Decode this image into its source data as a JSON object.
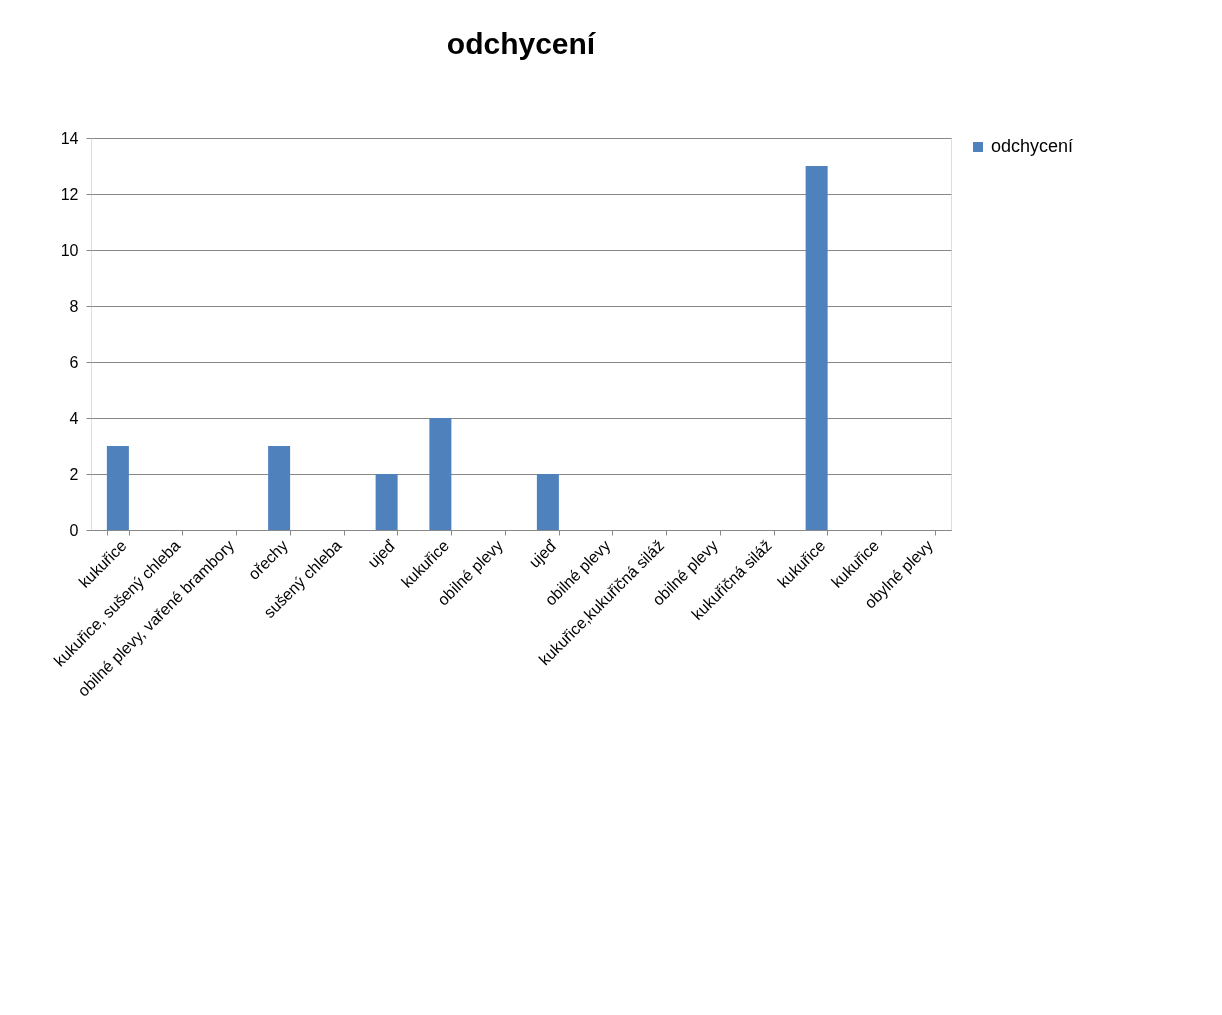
{
  "chart_data": {
    "type": "bar",
    "title": "odchycení",
    "categories": [
      "kukuřice",
      "kukuřice, sušený chleba",
      "obilné plevy, vařené brambory",
      "ořechy",
      "sušený chleba",
      "ujeď",
      "kukuřice",
      "obilné plevy",
      "ujeď",
      "obilné plevy",
      "kukuřice,kukuřičná siláž",
      "obilné plevy",
      "kukuřičná siláž",
      "kukuřice",
      "kukuřice",
      "obylné plevy"
    ],
    "series": [
      {
        "name": "odchycení",
        "color": "#4f81bd",
        "values": [
          3,
          null,
          null,
          3,
          null,
          2,
          4,
          null,
          2,
          null,
          null,
          null,
          null,
          13,
          null,
          null
        ]
      }
    ],
    "ylim": [
      0,
      14
    ],
    "yticks": [
      0,
      2,
      4,
      6,
      8,
      10,
      12,
      14
    ],
    "grid": "y",
    "legend": "right"
  }
}
